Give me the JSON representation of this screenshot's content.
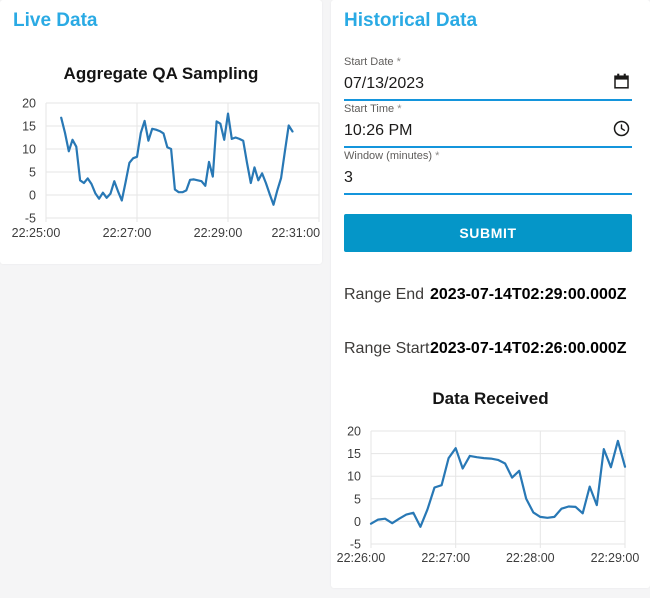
{
  "app": {
    "background": "#f5f5f6",
    "header_color": "#2aaae4",
    "underline_color": "#1495dc",
    "button_color": "#0596c8",
    "line_color": "#2878b5",
    "grid_color": "#e5e5e5"
  },
  "live_panel": {
    "title": "Live Data"
  },
  "historical_panel": {
    "title": "Historical Data",
    "fields": [
      {
        "label": "Start Date",
        "required_mark": "*",
        "value": "07/13/2023",
        "icon": "calendar-icon"
      },
      {
        "label": "Start Time",
        "required_mark": "*",
        "value": "10:26 PM",
        "icon": "clock-icon"
      },
      {
        "label": "Window (minutes)",
        "required_mark": "*",
        "value": "3",
        "icon": null
      }
    ],
    "submit_label": "SUBMIT",
    "results": [
      {
        "label": "Range End",
        "value": "2023-07-14T02:29:00.000Z"
      },
      {
        "label": "Range Start",
        "value": "2023-07-14T02:26:00.000Z"
      }
    ]
  },
  "chart_data": [
    {
      "type": "line",
      "title": "Aggregate QA Sampling",
      "xlabel": "",
      "ylabel": "",
      "grid": true,
      "legend": false,
      "x_axis": {
        "tick_labels": [
          "22:25:00",
          "22:27:00",
          "22:29:00",
          "22:31:00"
        ],
        "tick_seconds": [
          0,
          120,
          240,
          360
        ],
        "range_seconds": [
          0,
          360
        ]
      },
      "y_axis": {
        "ticks": [
          20,
          15,
          10,
          5,
          0,
          -5
        ],
        "range": [
          -5,
          20
        ]
      },
      "series": [
        {
          "name": "aggregate-qa-sampling",
          "t0_seconds": 20,
          "dt_seconds": 5,
          "values": [
            16.8,
            13.5,
            9.5,
            12.0,
            10.5,
            3.2,
            2.6,
            3.6,
            2.4,
            0.4,
            -0.8,
            0.5,
            -0.6,
            0.3,
            3.0,
            0.8,
            -1.2,
            2.8,
            7.0,
            8.0,
            8.3,
            13.5,
            16.1,
            11.8,
            14.4,
            14.2,
            13.9,
            13.4,
            10.4,
            10.0,
            1.2,
            0.6,
            0.6,
            1.0,
            3.3,
            3.4,
            3.2,
            3.0,
            2.0,
            7.2,
            4.0,
            16.0,
            15.5,
            12.0,
            17.7,
            12.2,
            12.5,
            12.2,
            11.8,
            7.0,
            2.6,
            6.0,
            3.2,
            4.7,
            2.6,
            0.2,
            -2.1,
            1.0,
            3.7,
            9.5,
            15.1,
            13.8
          ]
        }
      ]
    },
    {
      "type": "line",
      "title": "Data Received",
      "xlabel": "",
      "ylabel": "",
      "grid": true,
      "legend": false,
      "x_axis": {
        "tick_labels": [
          "22:26:00",
          "22:27:00",
          "22:28:00",
          "22:29:00"
        ],
        "tick_seconds": [
          0,
          60,
          120,
          180
        ],
        "range_seconds": [
          0,
          180
        ]
      },
      "y_axis": {
        "ticks": [
          20,
          15,
          10,
          5,
          0,
          -5
        ],
        "range": [
          -5,
          20
        ]
      },
      "series": [
        {
          "name": "data-received",
          "t0_seconds": 0,
          "dt_seconds": 5,
          "values": [
            -0.5,
            0.4,
            0.6,
            -0.4,
            0.6,
            1.5,
            1.9,
            -1.2,
            2.6,
            7.5,
            8.0,
            14.0,
            16.2,
            11.7,
            14.5,
            14.2,
            14.0,
            13.9,
            13.6,
            12.8,
            9.7,
            11.2,
            5.0,
            2.0,
            1.0,
            0.8,
            1.0,
            2.8,
            3.3,
            3.2,
            1.8,
            7.7,
            3.6,
            16.0,
            12.0,
            17.8,
            12.1
          ]
        }
      ]
    }
  ]
}
